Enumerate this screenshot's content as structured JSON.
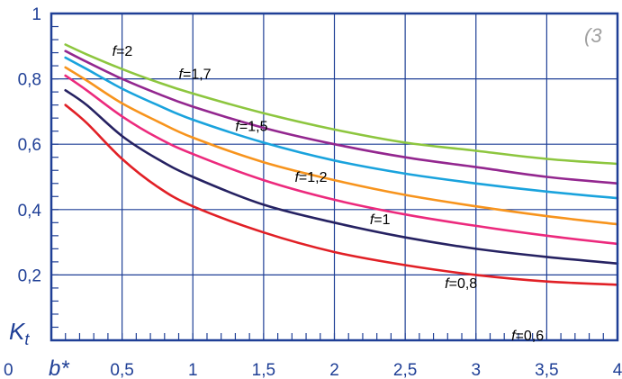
{
  "chart_data": {
    "type": "line",
    "title": "",
    "corner_note": "(3",
    "xlabel": "b*",
    "ylabel": "K",
    "ylabel_sub": "t",
    "xlim": [
      0,
      4
    ],
    "ylim": [
      0,
      1
    ],
    "grid": true,
    "x_ticks": [
      {
        "value": 0.5,
        "label": "0,5"
      },
      {
        "value": 1,
        "label": "1"
      },
      {
        "value": 1.5,
        "label": "1,5"
      },
      {
        "value": 2,
        "label": "2"
      },
      {
        "value": 2.5,
        "label": "2,5"
      },
      {
        "value": 3,
        "label": "3"
      },
      {
        "value": 3.5,
        "label": "3,5"
      },
      {
        "value": 4,
        "label": "4"
      }
    ],
    "y_ticks": [
      {
        "value": 0,
        "label": "0"
      },
      {
        "value": 0.2,
        "label": "0,2"
      },
      {
        "value": 0.4,
        "label": "0,4"
      },
      {
        "value": 0.6,
        "label": "0,6"
      },
      {
        "value": 0.8,
        "label": "0,8"
      },
      {
        "value": 1,
        "label": "1"
      }
    ],
    "x": [
      0.1,
      0.25,
      0.5,
      0.75,
      1.0,
      1.5,
      2.0,
      2.5,
      3.0,
      3.5,
      4.0
    ],
    "series": [
      {
        "name": "f=2",
        "f_label": "f",
        "v_label": "=2",
        "color": "#8dc63f",
        "values": [
          0.905,
          0.875,
          0.83,
          0.79,
          0.755,
          0.695,
          0.645,
          0.605,
          0.58,
          0.555,
          0.54
        ],
        "label_at": [
          0.43,
          0.87
        ]
      },
      {
        "name": "f=1,7",
        "f_label": "f",
        "v_label": "=1,7",
        "color": "#93278f",
        "values": [
          0.885,
          0.852,
          0.8,
          0.755,
          0.715,
          0.65,
          0.6,
          0.56,
          0.53,
          0.5,
          0.48
        ],
        "label_at": [
          0.9,
          0.8
        ]
      },
      {
        "name": "f=1,5",
        "f_label": "f",
        "v_label": "=1,5",
        "color": "#1aa3dd",
        "values": [
          0.865,
          0.83,
          0.77,
          0.72,
          0.675,
          0.605,
          0.55,
          0.51,
          0.48,
          0.455,
          0.435
        ],
        "label_at": [
          1.3,
          0.64
        ]
      },
      {
        "name": "f=1,2",
        "f_label": "f",
        "v_label": "=1,2",
        "color": "#f7941d",
        "values": [
          0.835,
          0.795,
          0.725,
          0.67,
          0.62,
          0.545,
          0.49,
          0.445,
          0.41,
          0.38,
          0.355
        ],
        "label_at": [
          1.72,
          0.485
        ]
      },
      {
        "name": "f=1",
        "f_label": "f",
        "v_label": "=1",
        "color": "#ec2a7d",
        "values": [
          0.81,
          0.765,
          0.685,
          0.62,
          0.57,
          0.49,
          0.43,
          0.385,
          0.35,
          0.32,
          0.295
        ],
        "label_at": [
          2.25,
          0.355
        ]
      },
      {
        "name": "f=0,8",
        "f_label": "f",
        "v_label": "=0,8",
        "color": "#262262",
        "values": [
          0.765,
          0.72,
          0.625,
          0.555,
          0.5,
          0.415,
          0.36,
          0.315,
          0.28,
          0.255,
          0.235
        ],
        "label_at": [
          2.78,
          0.16
        ]
      },
      {
        "name": "f=0,6",
        "f_label": "f",
        "v_label": "=0,6",
        "color": "#e12026",
        "values": [
          0.72,
          0.665,
          0.555,
          0.47,
          0.41,
          0.33,
          0.27,
          0.23,
          0.2,
          0.18,
          0.17
        ],
        "label_at": [
          3.25,
          0.0
        ]
      }
    ]
  }
}
